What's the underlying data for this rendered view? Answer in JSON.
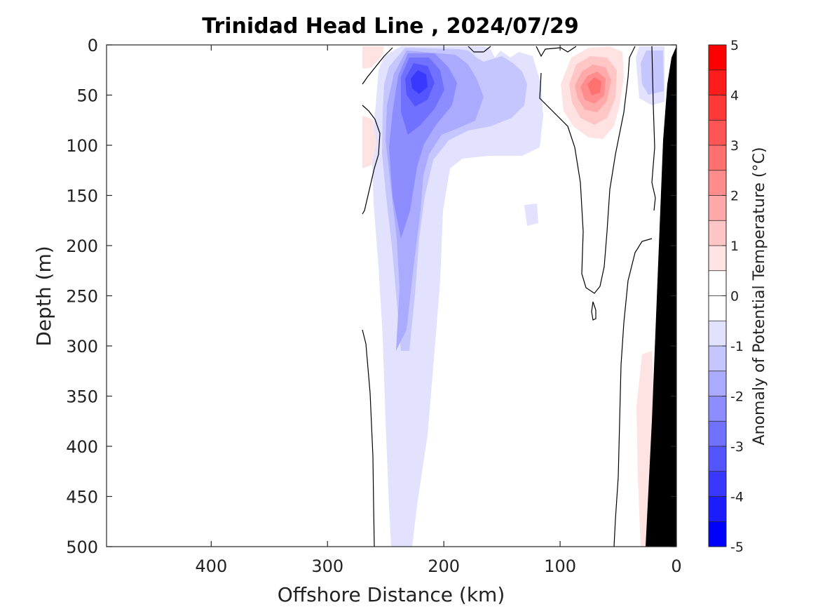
{
  "chart_data": {
    "type": "contour",
    "title": "Trinidad Head Line , 2024/07/29",
    "xlabel": "Offshore Distance (km)",
    "ylabel": "Depth (m)",
    "xlim": [
      490,
      0
    ],
    "ylim": [
      0,
      500
    ],
    "x_ticks": [
      "400",
      "300",
      "200",
      "100",
      "0"
    ],
    "y_ticks": [
      "0",
      "50",
      "100",
      "150",
      "200",
      "250",
      "300",
      "350",
      "400",
      "450",
      "500"
    ],
    "colorbar": {
      "label": "Anomaly of Potential Temperature (°C)",
      "range": [
        -5,
        5
      ],
      "tick_labels": [
        "5",
        "4",
        "3",
        "2",
        "1",
        "0",
        "-1",
        "-2",
        "-3",
        "-4",
        "-5"
      ],
      "colors_low_to_high": [
        "#0000ff",
        "#1c1cff",
        "#3838ff",
        "#5555ff",
        "#7171ff",
        "#8d8dff",
        "#aaaaff",
        "#c6c6ff",
        "#e2e2ff",
        "#ffffff",
        "#ffffff",
        "#ffe2e2",
        "#ffc6c6",
        "#ffaaaa",
        "#ff8d8d",
        "#ff7171",
        "#ff5555",
        "#ff3838",
        "#ff1c1c",
        "#ff0000"
      ]
    },
    "level_step": 0.5,
    "zero_contour_color": "#000000",
    "bathymetry_color": "#000000",
    "features": [
      {
        "kind": "cold core",
        "x_km": 235,
        "depth_m": 30,
        "anomaly": -2.5
      },
      {
        "kind": "cold tongue",
        "x_range_km": [
          270,
          180
        ],
        "depth_range_m": [
          0,
          500
        ],
        "anomaly": -0.5
      },
      {
        "kind": "warm core",
        "x_km": 70,
        "depth_m": 35,
        "anomaly": 2.0
      },
      {
        "kind": "weak warm band",
        "x_range_km": [
          35,
          20
        ],
        "depth_range_m": [
          300,
          500
        ],
        "anomaly": 0.5
      }
    ]
  }
}
